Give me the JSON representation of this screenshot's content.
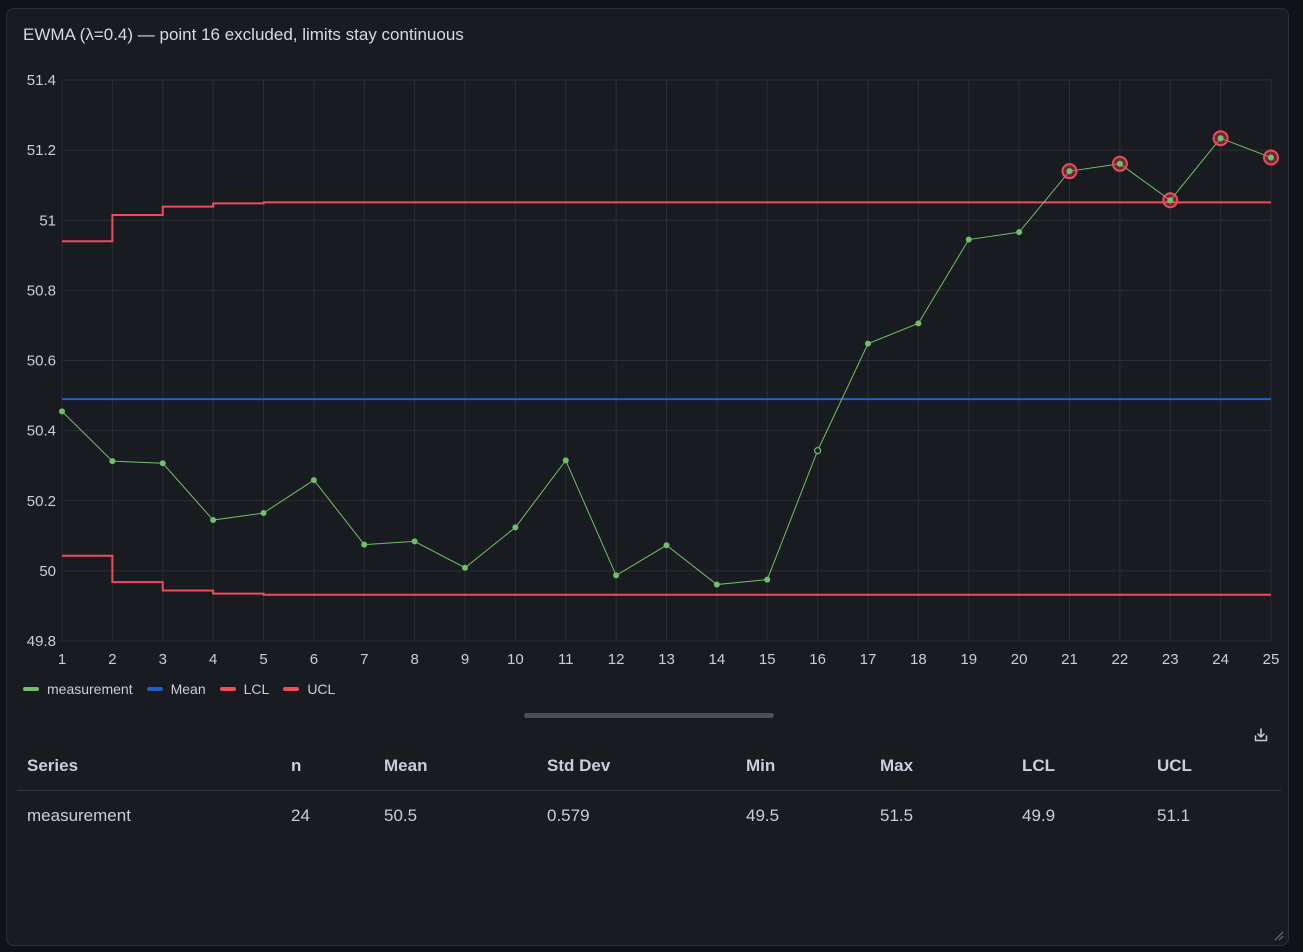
{
  "panel": {
    "title": "EWMA (λ=0.4) — point 16 excluded, limits stay continuous"
  },
  "chart_data": {
    "type": "line",
    "title": "EWMA (λ=0.4) — point 16 excluded, limits stay continuous",
    "xlabel": "",
    "ylabel": "",
    "xlim": [
      1,
      25
    ],
    "ylim": [
      49.8,
      51.4
    ],
    "x_ticks": [
      1,
      2,
      3,
      4,
      5,
      6,
      7,
      8,
      9,
      10,
      11,
      12,
      13,
      14,
      15,
      16,
      17,
      18,
      19,
      20,
      21,
      22,
      23,
      24,
      25
    ],
    "y_ticks": [
      49.8,
      50,
      50.2,
      50.4,
      50.6,
      50.8,
      51,
      51.2,
      51.4
    ],
    "y_tick_labels": [
      "49.8",
      "50",
      "50.2",
      "50.4",
      "50.6",
      "50.8",
      "51",
      "51.2",
      "51.4"
    ],
    "grid": true,
    "legend_position": "bottom-left",
    "series": [
      {
        "name": "measurement",
        "color": "#73bf69",
        "x": [
          1,
          2,
          3,
          4,
          5,
          6,
          7,
          8,
          9,
          10,
          11,
          12,
          13,
          14,
          15,
          16,
          17,
          18,
          19,
          20,
          21,
          22,
          23,
          24,
          25
        ],
        "values": [
          50.455,
          50.313,
          50.307,
          50.145,
          50.165,
          50.259,
          50.075,
          50.084,
          50.009,
          50.124,
          50.315,
          49.987,
          50.073,
          49.961,
          49.975,
          50.343,
          50.648,
          50.706,
          50.945,
          50.966,
          51.14,
          51.161,
          51.057,
          51.234,
          51.179
        ],
        "excluded_points": [
          16
        ],
        "out_of_control_points": [
          21,
          22,
          23,
          24,
          25
        ]
      },
      {
        "name": "Mean",
        "color": "#1f60c4",
        "x": [
          1,
          25
        ],
        "values": [
          50.49,
          50.49
        ]
      },
      {
        "name": "LCL",
        "color": "#f2495c",
        "step": true,
        "x": [
          1,
          2,
          3,
          4,
          5,
          25
        ],
        "values": [
          50.043,
          49.968,
          49.944,
          49.935,
          49.932,
          49.932
        ]
      },
      {
        "name": "UCL",
        "color": "#f2495c",
        "step": true,
        "x": [
          1,
          2,
          3,
          4,
          5,
          25
        ],
        "values": [
          50.94,
          51.015,
          51.039,
          51.048,
          51.051,
          51.051
        ]
      }
    ]
  },
  "legend": [
    {
      "label": "measurement",
      "color": "#73bf69"
    },
    {
      "label": "Mean",
      "color": "#1f60c4"
    },
    {
      "label": "LCL",
      "color": "#f2495c"
    },
    {
      "label": "UCL",
      "color": "#f2495c"
    }
  ],
  "table": {
    "headers": [
      "Series",
      "n",
      "Mean",
      "Std Dev",
      "Min",
      "Max",
      "LCL",
      "UCL"
    ],
    "rows": [
      [
        "measurement",
        "24",
        "50.5",
        "0.579",
        "49.5",
        "51.5",
        "49.9",
        "51.1"
      ]
    ]
  },
  "icons": {
    "download": "download-icon",
    "resize": "resize-handle-icon"
  }
}
